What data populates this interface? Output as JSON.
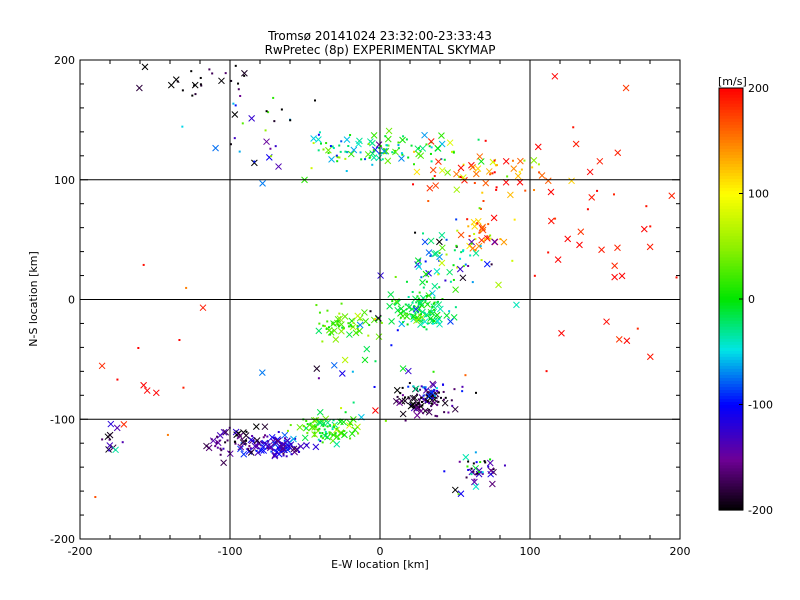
{
  "chart_data": {
    "type": "scatter",
    "title": "Tromsø 20141024 23:32:00-23:33:43",
    "subtitle": "RwPretec (8p) EXPERIMENTAL SKYMAP",
    "xlabel": "E-W location [km]",
    "ylabel": "N-S location [km]",
    "xlim": [
      -200,
      200
    ],
    "ylim": [
      -200,
      200
    ],
    "xticks": [
      "-200",
      "-100",
      "0",
      "100",
      "200"
    ],
    "yticks": [
      "-200",
      "-100",
      "0",
      "100",
      "200"
    ],
    "grid": true,
    "colorbar": {
      "label": "[m/s]",
      "range": [
        -200,
        200
      ],
      "ticks": [
        "200",
        "100",
        "0",
        "-100",
        "-200"
      ],
      "colormap": "rainbow (black-purple-blue-cyan-green-yellow-red)"
    },
    "marker_types": [
      "x (large)",
      "dot (small)"
    ],
    "clusters": [
      {
        "x": -70,
        "y": -122,
        "sx": 10,
        "sy": 5,
        "n": 110,
        "vel": -120,
        "vsd": 25
      },
      {
        "x": -100,
        "y": -118,
        "sx": 10,
        "sy": 6,
        "n": 45,
        "vel": -170,
        "vsd": 25
      },
      {
        "x": -35,
        "y": -108,
        "sx": 12,
        "sy": 5,
        "n": 90,
        "vel": 15,
        "vsd": 30
      },
      {
        "x": 28,
        "y": -85,
        "sx": 10,
        "sy": 6,
        "n": 90,
        "vel": -185,
        "vsd": 25
      },
      {
        "x": 32,
        "y": -78,
        "sx": 10,
        "sy": 6,
        "n": 25,
        "vel": -100,
        "vsd": 30
      },
      {
        "x": 28,
        "y": -8,
        "sx": 9,
        "sy": 9,
        "n": 110,
        "vel": -10,
        "vsd": 20
      },
      {
        "x": -22,
        "y": -20,
        "sx": 10,
        "sy": 5,
        "n": 55,
        "vel": 25,
        "vsd": 20
      },
      {
        "x": 5,
        "y": 125,
        "sx": 25,
        "sy": 7,
        "n": 110,
        "vel": -5,
        "vsd": 50
      },
      {
        "x": -75,
        "y": 140,
        "sx": 22,
        "sy": 18,
        "n": 30,
        "vel": -80,
        "vsd": 80
      },
      {
        "x": -120,
        "y": 185,
        "sx": 22,
        "sy": 8,
        "n": 25,
        "vel": -190,
        "vsd": 20
      },
      {
        "x": 68,
        "y": 55,
        "sx": 7,
        "sy": 7,
        "n": 35,
        "vel": 150,
        "vsd": 50
      },
      {
        "x": 50,
        "y": 35,
        "sx": 15,
        "sy": 12,
        "n": 60,
        "vel": -50,
        "vsd": 90
      },
      {
        "x": 70,
        "y": 105,
        "sx": 25,
        "sy": 12,
        "n": 60,
        "vel": 150,
        "vsd": 60
      },
      {
        "x": 150,
        "y": 60,
        "sx": 30,
        "sy": 45,
        "n": 45,
        "vel": 195,
        "vsd": 10
      },
      {
        "x": 65,
        "y": -145,
        "sx": 10,
        "sy": 10,
        "n": 40,
        "vel": -120,
        "vsd": 80
      },
      {
        "x": 0,
        "y": -40,
        "sx": 35,
        "sy": 30,
        "n": 40,
        "vel": 0,
        "vsd": 110
      },
      {
        "x": -155,
        "y": -60,
        "sx": 20,
        "sy": 50,
        "n": 14,
        "vel": 190,
        "vsd": 20
      },
      {
        "x": -180,
        "y": -115,
        "sx": 6,
        "sy": 6,
        "n": 12,
        "vel": -130,
        "vsd": 40
      }
    ]
  }
}
